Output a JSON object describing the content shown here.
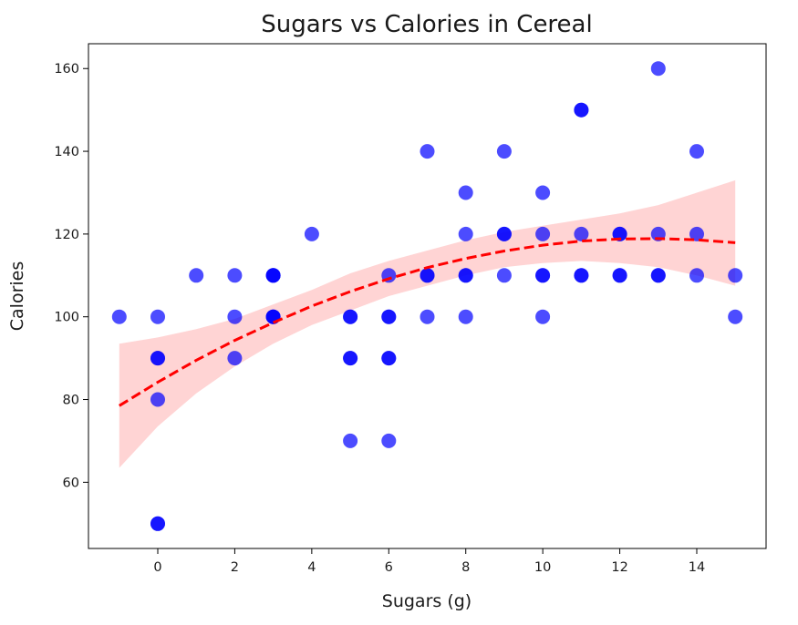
{
  "chart_data": {
    "type": "scatter",
    "title": "Sugars vs Calories in Cereal",
    "xlabel": "Sugars (g)",
    "ylabel": "Calories",
    "xlim": [
      -1.8,
      15.8
    ],
    "ylim": [
      44,
      166
    ],
    "xticks": [
      0,
      2,
      4,
      6,
      8,
      10,
      12,
      14
    ],
    "yticks": [
      60,
      80,
      100,
      120,
      140,
      160
    ],
    "grid": false,
    "point_color": "#0000ff",
    "point_opacity": 0.7,
    "points": [
      [
        -1,
        100
      ],
      [
        0,
        100
      ],
      [
        0,
        90
      ],
      [
        0,
        90
      ],
      [
        0,
        80
      ],
      [
        0,
        50
      ],
      [
        0,
        50
      ],
      [
        1,
        110
      ],
      [
        2,
        110
      ],
      [
        2,
        100
      ],
      [
        2,
        90
      ],
      [
        3,
        110
      ],
      [
        3,
        110
      ],
      [
        3,
        110
      ],
      [
        3,
        100
      ],
      [
        3,
        100
      ],
      [
        3,
        100
      ],
      [
        4,
        120
      ],
      [
        5,
        100
      ],
      [
        5,
        100
      ],
      [
        5,
        90
      ],
      [
        5,
        90
      ],
      [
        5,
        70
      ],
      [
        6,
        110
      ],
      [
        6,
        100
      ],
      [
        6,
        100
      ],
      [
        6,
        90
      ],
      [
        6,
        90
      ],
      [
        6,
        70
      ],
      [
        7,
        140
      ],
      [
        7,
        110
      ],
      [
        7,
        110
      ],
      [
        7,
        100
      ],
      [
        8,
        130
      ],
      [
        8,
        120
      ],
      [
        8,
        110
      ],
      [
        8,
        110
      ],
      [
        8,
        100
      ],
      [
        9,
        140
      ],
      [
        9,
        120
      ],
      [
        9,
        120
      ],
      [
        9,
        110
      ],
      [
        10,
        130
      ],
      [
        10,
        120
      ],
      [
        10,
        110
      ],
      [
        10,
        110
      ],
      [
        10,
        100
      ],
      [
        11,
        150
      ],
      [
        11,
        150
      ],
      [
        11,
        120
      ],
      [
        11,
        110
      ],
      [
        11,
        110
      ],
      [
        12,
        120
      ],
      [
        12,
        120
      ],
      [
        12,
        110
      ],
      [
        12,
        110
      ],
      [
        13,
        160
      ],
      [
        13,
        120
      ],
      [
        13,
        110
      ],
      [
        13,
        110
      ],
      [
        14,
        140
      ],
      [
        14,
        120
      ],
      [
        14,
        110
      ],
      [
        15,
        110
      ],
      [
        15,
        100
      ]
    ],
    "fit": {
      "color": "#ff0000",
      "band_color": "#ffcccc",
      "x": [
        -1,
        0,
        1,
        2,
        3,
        4,
        5,
        6,
        7,
        8,
        9,
        10,
        11,
        12,
        13,
        14,
        15
      ],
      "y": [
        78.5,
        84.2,
        89.5,
        94.3,
        98.6,
        102.6,
        106.1,
        109.2,
        111.9,
        114.1,
        115.9,
        117.3,
        118.3,
        118.8,
        118.9,
        118.6,
        117.9
      ],
      "lower": [
        63.5,
        73.5,
        81.5,
        88,
        93.5,
        98,
        101.5,
        105,
        107.5,
        110,
        112,
        113,
        113.5,
        113,
        112,
        110,
        107.5
      ],
      "upper": [
        93.5,
        95,
        97,
        99.5,
        103,
        106.5,
        110.5,
        113.5,
        116,
        118.5,
        120.5,
        122,
        123.5,
        125,
        127,
        130,
        133
      ]
    }
  }
}
